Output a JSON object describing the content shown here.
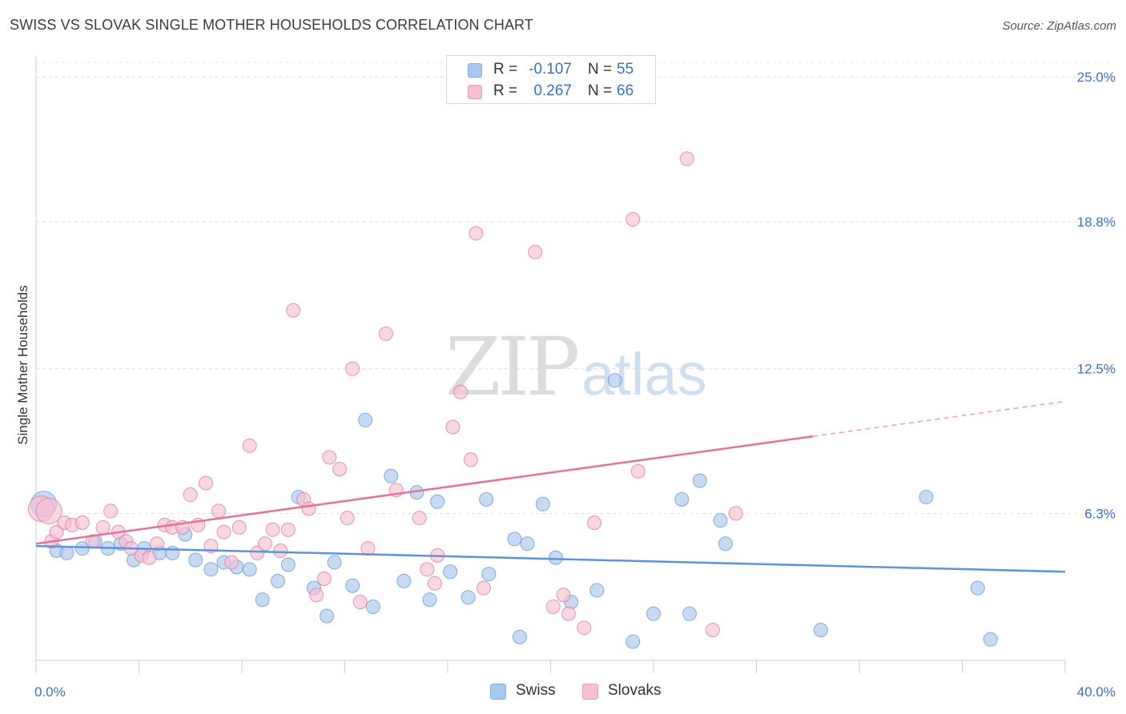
{
  "title": "SWISS VS SLOVAK SINGLE MOTHER HOUSEHOLDS CORRELATION CHART",
  "source": "Source: ZipAtlas.com",
  "watermark": {
    "part1": "ZIP",
    "part2": "atlas"
  },
  "legend": {
    "rows": [
      {
        "label": "R =",
        "r_value": "-0.107",
        "n_label": "N =",
        "n_value": "55",
        "color": "#a9c8f0",
        "border": "#7eaee6"
      },
      {
        "label": "R =",
        "r_value": "0.267",
        "n_label": "N =",
        "n_value": "66",
        "color": "#f7bfd2",
        "border": "#ef9ab7"
      }
    ]
  },
  "bottom_legend": [
    {
      "label": "Swiss",
      "color": "#a9c8f0",
      "border": "#7eaee6"
    },
    {
      "label": "Slovaks",
      "color": "#f7bfd2",
      "border": "#ef9ab7"
    }
  ],
  "chart_data": {
    "type": "scatter",
    "title": "SWISS VS SLOVAK SINGLE MOTHER HOUSEHOLDS CORRELATION CHART",
    "xlabel": "",
    "ylabel": "Single Mother Households",
    "xlim": [
      0,
      40
    ],
    "ylim": [
      0,
      25.9
    ],
    "x_tick_labels": [
      "0.0%",
      "40.0%"
    ],
    "y_tick_labels": [
      "25.0%",
      "18.8%",
      "12.5%",
      "6.3%"
    ],
    "y_ticks": [
      25.0,
      18.8,
      12.5,
      6.3
    ],
    "grid": true,
    "series": [
      {
        "name": "Swiss",
        "color": "#5b95dd",
        "fill": "#a9c8f0",
        "trend": {
          "x0": 0,
          "y0": 4.9,
          "x1": 40,
          "y1": 3.8
        },
        "points": [
          [
            0.3,
            6.7
          ],
          [
            0.8,
            4.7
          ],
          [
            1.2,
            4.6
          ],
          [
            1.8,
            4.8
          ],
          [
            2.3,
            5.1
          ],
          [
            2.8,
            4.8
          ],
          [
            3.3,
            5.0
          ],
          [
            3.8,
            4.3
          ],
          [
            4.2,
            4.8
          ],
          [
            4.8,
            4.6
          ],
          [
            5.3,
            4.6
          ],
          [
            5.8,
            5.4
          ],
          [
            6.2,
            4.3
          ],
          [
            6.8,
            3.9
          ],
          [
            7.3,
            4.2
          ],
          [
            7.8,
            4.0
          ],
          [
            8.3,
            3.9
          ],
          [
            8.8,
            2.6
          ],
          [
            9.4,
            3.4
          ],
          [
            9.8,
            4.1
          ],
          [
            10.2,
            7.0
          ],
          [
            10.8,
            3.1
          ],
          [
            11.3,
            1.9
          ],
          [
            11.6,
            4.2
          ],
          [
            12.3,
            3.2
          ],
          [
            12.8,
            10.3
          ],
          [
            13.1,
            2.3
          ],
          [
            13.8,
            7.9
          ],
          [
            14.3,
            3.4
          ],
          [
            14.8,
            7.2
          ],
          [
            15.3,
            2.6
          ],
          [
            15.6,
            6.8
          ],
          [
            16.1,
            3.8
          ],
          [
            16.8,
            2.7
          ],
          [
            17.5,
            6.9
          ],
          [
            17.6,
            3.7
          ],
          [
            18.6,
            5.2
          ],
          [
            18.8,
            1.0
          ],
          [
            19.1,
            5.0
          ],
          [
            19.7,
            6.7
          ],
          [
            20.2,
            4.4
          ],
          [
            20.8,
            2.5
          ],
          [
            21.8,
            3.0
          ],
          [
            22.5,
            12.0
          ],
          [
            23.2,
            0.8
          ],
          [
            24.0,
            2.0
          ],
          [
            25.1,
            6.9
          ],
          [
            25.4,
            2.0
          ],
          [
            25.8,
            7.7
          ],
          [
            26.6,
            6.0
          ],
          [
            26.8,
            5.0
          ],
          [
            30.5,
            1.3
          ],
          [
            34.6,
            7.0
          ],
          [
            36.6,
            3.1
          ],
          [
            37.1,
            0.9
          ]
        ]
      },
      {
        "name": "Slovaks",
        "color": "#e8709a",
        "fill": "#f7bfd2",
        "trend": {
          "x0": 0,
          "y0": 5.0,
          "x1": 30.2,
          "y1": 9.6,
          "dash_x1": 40,
          "dash_y1": 11.1
        },
        "points": [
          [
            0.2,
            6.5
          ],
          [
            0.6,
            5.1
          ],
          [
            0.8,
            5.5
          ],
          [
            1.1,
            5.9
          ],
          [
            1.4,
            5.8
          ],
          [
            1.8,
            5.9
          ],
          [
            2.2,
            5.1
          ],
          [
            2.6,
            5.7
          ],
          [
            2.9,
            6.4
          ],
          [
            3.2,
            5.5
          ],
          [
            3.5,
            5.1
          ],
          [
            3.7,
            4.8
          ],
          [
            4.1,
            4.5
          ],
          [
            4.4,
            4.4
          ],
          [
            4.7,
            5.0
          ],
          [
            5.0,
            5.8
          ],
          [
            5.3,
            5.7
          ],
          [
            5.7,
            5.7
          ],
          [
            6.0,
            7.1
          ],
          [
            6.3,
            5.8
          ],
          [
            6.6,
            7.6
          ],
          [
            6.8,
            4.9
          ],
          [
            7.1,
            6.4
          ],
          [
            7.3,
            5.5
          ],
          [
            7.6,
            4.2
          ],
          [
            7.9,
            5.7
          ],
          [
            8.3,
            9.2
          ],
          [
            8.6,
            4.6
          ],
          [
            8.9,
            5.0
          ],
          [
            9.2,
            5.6
          ],
          [
            9.5,
            4.7
          ],
          [
            9.8,
            5.6
          ],
          [
            10.0,
            15.0
          ],
          [
            10.4,
            6.9
          ],
          [
            10.6,
            6.5
          ],
          [
            10.9,
            2.8
          ],
          [
            11.2,
            3.5
          ],
          [
            11.4,
            8.7
          ],
          [
            11.8,
            8.2
          ],
          [
            12.1,
            6.1
          ],
          [
            12.3,
            12.5
          ],
          [
            12.6,
            2.5
          ],
          [
            12.9,
            4.8
          ],
          [
            13.6,
            14.0
          ],
          [
            14.0,
            7.3
          ],
          [
            14.9,
            6.1
          ],
          [
            15.2,
            3.9
          ],
          [
            15.5,
            3.3
          ],
          [
            15.6,
            4.5
          ],
          [
            16.2,
            10.0
          ],
          [
            16.5,
            11.5
          ],
          [
            16.9,
            8.6
          ],
          [
            17.1,
            18.3
          ],
          [
            17.4,
            3.1
          ],
          [
            19.4,
            17.5
          ],
          [
            20.1,
            2.3
          ],
          [
            20.5,
            2.8
          ],
          [
            20.7,
            2.0
          ],
          [
            21.3,
            1.4
          ],
          [
            21.7,
            5.9
          ],
          [
            23.2,
            18.9
          ],
          [
            23.4,
            8.1
          ],
          [
            25.3,
            21.5
          ],
          [
            26.3,
            1.3
          ],
          [
            27.2,
            6.3
          ],
          [
            0.5,
            6.4
          ]
        ]
      }
    ]
  }
}
